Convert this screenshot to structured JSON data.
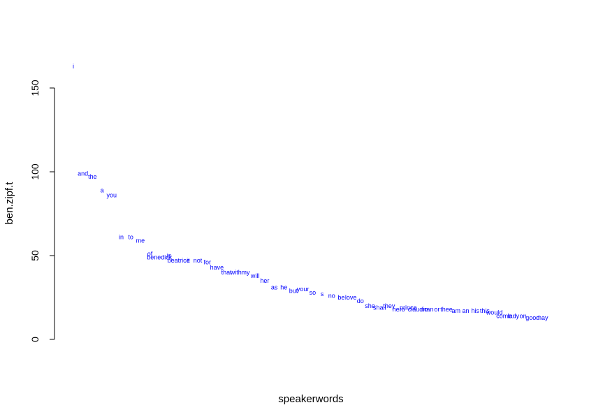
{
  "chart_data": {
    "type": "scatter",
    "marker": "text",
    "title": "",
    "xlabel": "speakerwords",
    "ylabel": "ben.zipf.t",
    "ylim": [
      0,
      150
    ],
    "yticks": [
      "0",
      "50",
      "100",
      "150"
    ],
    "ytick_values": [
      0,
      50,
      100,
      150
    ],
    "xaxis_drawn": false,
    "grid": false,
    "legend": "none",
    "color": "#0000ff",
    "points": [
      {
        "x": 1,
        "y": 163,
        "label": "i"
      },
      {
        "x": 2,
        "y": 99,
        "label": "and"
      },
      {
        "x": 3,
        "y": 97,
        "label": "the"
      },
      {
        "x": 4,
        "y": 89,
        "label": "a"
      },
      {
        "x": 5,
        "y": 86,
        "label": "you"
      },
      {
        "x": 6,
        "y": 61,
        "label": "in"
      },
      {
        "x": 7,
        "y": 61,
        "label": "to"
      },
      {
        "x": 8,
        "y": 59,
        "label": "me"
      },
      {
        "x": 9,
        "y": 51,
        "label": "of"
      },
      {
        "x": 10,
        "y": 49,
        "label": "benedick"
      },
      {
        "x": 11,
        "y": 50,
        "label": "is"
      },
      {
        "x": 12,
        "y": 47,
        "label": "beatrice"
      },
      {
        "x": 13,
        "y": 47,
        "label": "it"
      },
      {
        "x": 14,
        "y": 47,
        "label": "not"
      },
      {
        "x": 15,
        "y": 46,
        "label": "for"
      },
      {
        "x": 16,
        "y": 43,
        "label": "have"
      },
      {
        "x": 17,
        "y": 40,
        "label": "that"
      },
      {
        "x": 18,
        "y": 40,
        "label": "with"
      },
      {
        "x": 19,
        "y": 40,
        "label": "my"
      },
      {
        "x": 20,
        "y": 38,
        "label": "will"
      },
      {
        "x": 21,
        "y": 35,
        "label": "her"
      },
      {
        "x": 22,
        "y": 31,
        "label": "as"
      },
      {
        "x": 23,
        "y": 31,
        "label": "he"
      },
      {
        "x": 24,
        "y": 29,
        "label": "but"
      },
      {
        "x": 25,
        "y": 30,
        "label": "your"
      },
      {
        "x": 26,
        "y": 28,
        "label": "so"
      },
      {
        "x": 27,
        "y": 27,
        "label": "s"
      },
      {
        "x": 28,
        "y": 26,
        "label": "no"
      },
      {
        "x": 29,
        "y": 25,
        "label": "be"
      },
      {
        "x": 30,
        "y": 25,
        "label": "love"
      },
      {
        "x": 31,
        "y": 23,
        "label": "do"
      },
      {
        "x": 32,
        "y": 20,
        "label": "she"
      },
      {
        "x": 33,
        "y": 19,
        "label": "shall"
      },
      {
        "x": 34,
        "y": 20,
        "label": "they"
      },
      {
        "x": 35,
        "y": 18,
        "label": "hero"
      },
      {
        "x": 36,
        "y": 19,
        "label": "prince"
      },
      {
        "x": 37,
        "y": 18,
        "label": "claudio"
      },
      {
        "x": 38,
        "y": 18,
        "label": "man"
      },
      {
        "x": 39,
        "y": 18,
        "label": "or"
      },
      {
        "x": 40,
        "y": 18,
        "label": "thee"
      },
      {
        "x": 41,
        "y": 17,
        "label": "am"
      },
      {
        "x": 42,
        "y": 17,
        "label": "an"
      },
      {
        "x": 43,
        "y": 17,
        "label": "his"
      },
      {
        "x": 44,
        "y": 17,
        "label": "this"
      },
      {
        "x": 45,
        "y": 16,
        "label": "would"
      },
      {
        "x": 46,
        "y": 14,
        "label": "come"
      },
      {
        "x": 47,
        "y": 14,
        "label": "lady"
      },
      {
        "x": 48,
        "y": 14,
        "label": "on"
      },
      {
        "x": 49,
        "y": 13,
        "label": "good"
      },
      {
        "x": 50,
        "y": 13,
        "label": "may"
      }
    ]
  }
}
